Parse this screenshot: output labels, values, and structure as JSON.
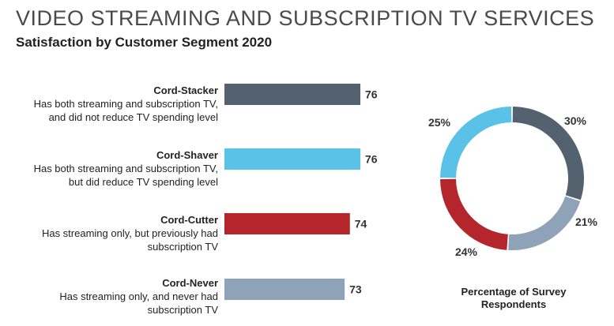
{
  "chart_data": [
    {
      "type": "bar",
      "orientation": "horizontal",
      "title": "VIDEO STREAMING AND SUBSCRIPTION TV SERVICES",
      "subtitle": "Satisfaction by Customer Segment 2020",
      "xlim": [
        50,
        78
      ],
      "categories": [
        "Cord-Stacker",
        "Cord-Shaver",
        "Cord-Cutter",
        "Cord-Never"
      ],
      "descriptions": [
        [
          "Has both streaming and subscription TV,",
          "and did not reduce TV spending level"
        ],
        [
          "Has both streaming and subscription TV,",
          "but did reduce TV spending level"
        ],
        [
          "Has streaming only, but previously had",
          "subscription TV"
        ],
        [
          "Has streaming only, and never had",
          "subscription TV"
        ]
      ],
      "values": [
        76,
        76,
        74,
        73
      ],
      "colors": [
        "#546270",
        "#5bc2e7",
        "#b5262c",
        "#8ea3b8"
      ]
    },
    {
      "type": "pie",
      "style": "donut",
      "caption": [
        "Percentage of Survey",
        "Respondents"
      ],
      "slices": [
        {
          "label": "Cord-Stacker",
          "value": 30,
          "text": "30%",
          "color": "#546270"
        },
        {
          "label": "Cord-Never",
          "value": 21,
          "text": "21%",
          "color": "#8ea3b8"
        },
        {
          "label": "Cord-Cutter",
          "value": 24,
          "text": "24%",
          "color": "#b5262c"
        },
        {
          "label": "Cord-Shaver",
          "value": 25,
          "text": "25%",
          "color": "#5bc2e7"
        }
      ]
    }
  ]
}
